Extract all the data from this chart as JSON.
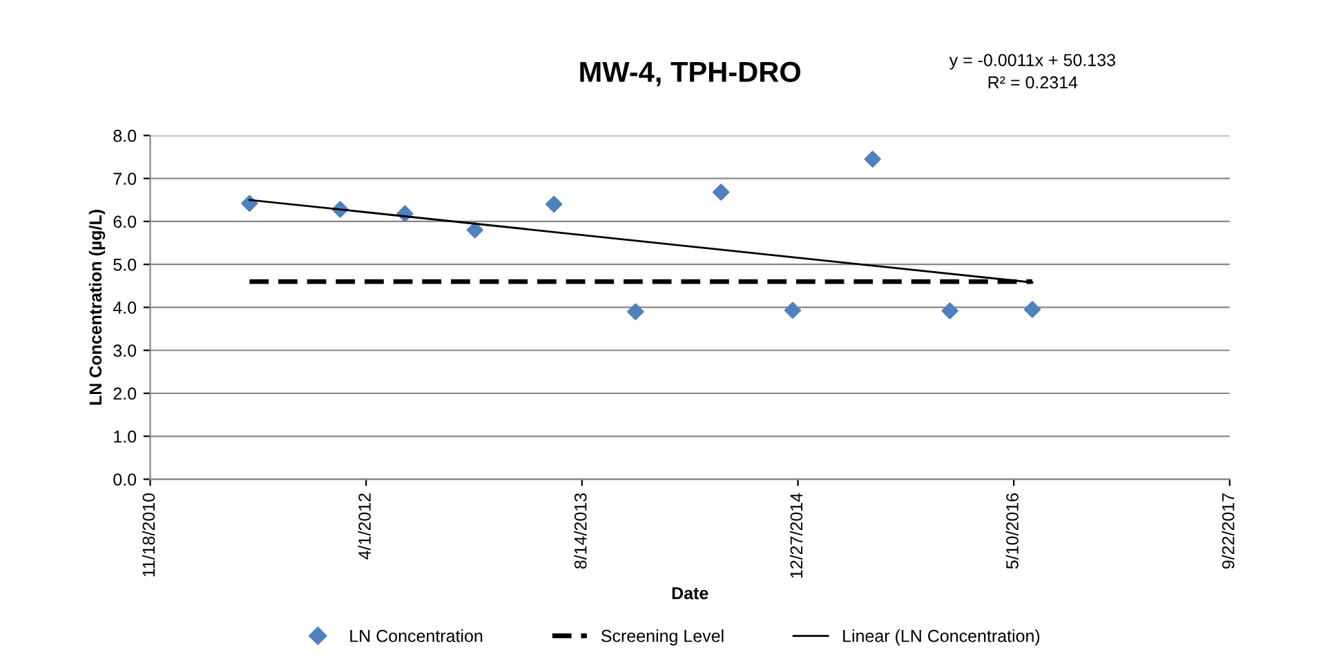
{
  "chart_data": {
    "type": "scatter",
    "title": "MW-4, TPH-DRO",
    "xlabel": "Date",
    "ylabel": "LN Concentration (µg/L)",
    "annotations": [
      "y = -0.0011x + 50.133\nR² = 0.2314"
    ],
    "series": [
      {
        "name": "LN Concentration",
        "color": "#4f81bd",
        "marker": "diamond",
        "x": [
          "2011-07-06",
          "2012-02-01",
          "2012-06-30",
          "2012-12-09",
          "2013-06-10",
          "2013-12-16",
          "2014-07-02",
          "2014-12-15",
          "2015-06-18",
          "2015-12-14",
          "2016-06-22"
        ],
        "values": [
          6.42,
          6.28,
          6.18,
          5.8,
          6.4,
          3.9,
          6.68,
          3.93,
          7.45,
          3.92,
          3.95
        ]
      },
      {
        "name": "Screening Level",
        "type": "line",
        "color": "#000000",
        "line_style": "dashed",
        "x": [
          "2011-07-06",
          "2016-06-22"
        ],
        "values": [
          4.6,
          4.6
        ]
      },
      {
        "name": "Linear (LN Concentration)",
        "type": "line",
        "color": "#000000",
        "line_style": "solid",
        "x": [
          "2011-07-06",
          "2016-06-22"
        ],
        "values": [
          6.5,
          4.58
        ]
      }
    ],
    "xlim": [
      "2010-11-18",
      "2017-09-22"
    ],
    "xticks": [
      {
        "value": "2010-11-18",
        "label": "11/18/2010"
      },
      {
        "value": "2012-04-01",
        "label": "4/1/2012"
      },
      {
        "value": "2013-08-14",
        "label": "8/14/2013"
      },
      {
        "value": "2014-12-27",
        "label": "12/27/2014"
      },
      {
        "value": "2016-05-10",
        "label": "5/10/2016"
      },
      {
        "value": "2017-09-22",
        "label": "9/22/2017"
      }
    ],
    "ylim": [
      0,
      8
    ],
    "yticks": [
      {
        "value": 0,
        "label": "0.0"
      },
      {
        "value": 1,
        "label": "1.0"
      },
      {
        "value": 2,
        "label": "2.0"
      },
      {
        "value": 3,
        "label": "3.0"
      },
      {
        "value": 4,
        "label": "4.0"
      },
      {
        "value": 5,
        "label": "5.0"
      },
      {
        "value": 6,
        "label": "6.0"
      },
      {
        "value": 7,
        "label": "7.0"
      },
      {
        "value": 8,
        "label": "8.0"
      }
    ],
    "grid": "y",
    "legend": "bottom"
  }
}
